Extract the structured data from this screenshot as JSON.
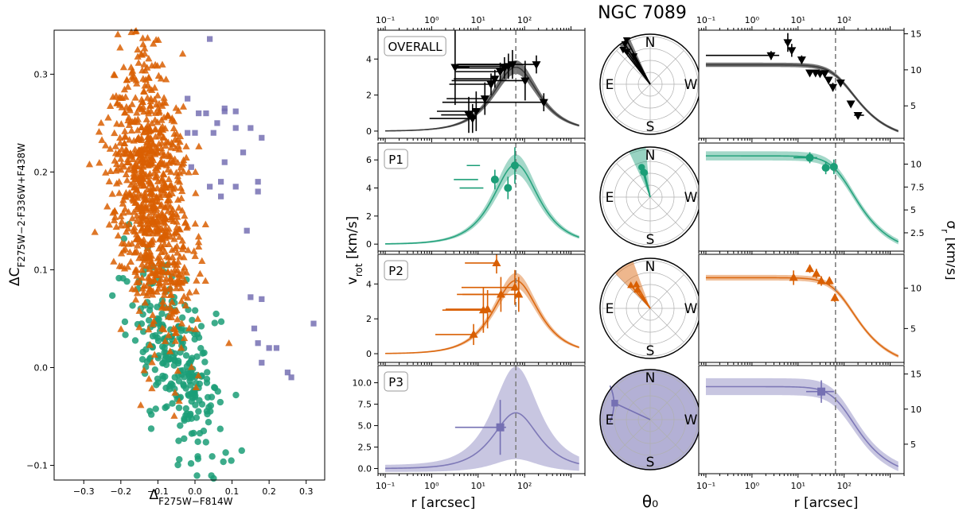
{
  "figure_title": "NGC 7089",
  "colors": {
    "overall": "#000000",
    "overall_band": "#555555",
    "P1": "#1b9e77",
    "P2": "#d95f02",
    "P3": "#7570b3"
  },
  "chart_data": [
    {
      "type": "scatter",
      "id": "chromosome-map",
      "xlabel": "Δ_F275W−F814W",
      "ylabel": "ΔC_F275W−2·F336W+F438W",
      "xlim": [
        -0.38,
        0.35
      ],
      "ylim": [
        -0.115,
        0.345
      ],
      "xticks": [
        -0.3,
        -0.2,
        -0.1,
        0.0,
        0.1,
        0.2,
        0.3
      ],
      "xtick_labels": [
        "−0.3",
        "−0.2",
        "−0.1",
        "0.0",
        "0.1",
        "0.2",
        "0.3"
      ],
      "yticks": [
        -0.1,
        0.0,
        0.1,
        0.2,
        0.3
      ],
      "ytick_labels": [
        "−0.1",
        "0.0",
        "0.1",
        "0.2",
        "0.3"
      ],
      "series": [
        {
          "name": "P1",
          "marker": "circle",
          "color": "#1b9e77",
          "count": 260,
          "center": [
            -0.05,
            0.01
          ],
          "spread": [
            0.07,
            0.04
          ],
          "slope": -0.45
        },
        {
          "name": "P2",
          "marker": "triangle",
          "color": "#d95f02",
          "count": 900,
          "center": [
            -0.12,
            0.18
          ],
          "spread": [
            0.06,
            0.07
          ],
          "slope": -0.55
        },
        {
          "name": "P3",
          "marker": "square",
          "color": "#7570b3",
          "points": [
            [
              0.04,
              0.336
            ],
            [
              -0.02,
              0.275
            ],
            [
              0.01,
              0.26
            ],
            [
              0.03,
              0.26
            ],
            [
              0.08,
              0.265
            ],
            [
              0.08,
              0.262
            ],
            [
              0.11,
              0.262
            ],
            [
              0.11,
              0.245
            ],
            [
              0.15,
              0.245
            ],
            [
              0.18,
              0.235
            ],
            [
              -0.01,
              0.205
            ],
            [
              0.05,
              0.24
            ],
            [
              0.06,
              0.25
            ],
            [
              0.0,
              0.24
            ],
            [
              -0.02,
              0.24
            ],
            [
              0.08,
              0.21
            ],
            [
              0.13,
              0.22
            ],
            [
              0.17,
              0.19
            ],
            [
              0.17,
              0.18
            ],
            [
              0.11,
              0.185
            ],
            [
              0.14,
              0.14
            ],
            [
              0.07,
              0.19
            ],
            [
              0.04,
              0.185
            ],
            [
              0.07,
              0.175
            ],
            [
              0.16,
              0.04
            ],
            [
              0.18,
              0.07
            ],
            [
              0.18,
              0.005
            ],
            [
              0.2,
              0.02
            ],
            [
              0.22,
              0.02
            ],
            [
              0.25,
              -0.005
            ],
            [
              0.26,
              -0.01
            ],
            [
              0.32,
              0.045
            ],
            [
              0.17,
              0.025
            ],
            [
              0.15,
              0.072
            ]
          ]
        }
      ]
    },
    {
      "type": "line",
      "id": "vrot-profiles",
      "xscale": "log",
      "xlabel": "r [arcsec]",
      "ylabel": "v_rot [km/s]",
      "xlim": [
        0.07,
        2000
      ],
      "top_axis_ticks": [
        "10⁻¹",
        "10⁰",
        "10¹",
        "10²"
      ],
      "bottom_axis_ticks": [
        "10⁻¹",
        "10⁰",
        "10¹",
        "10²"
      ],
      "vline_r": 65,
      "model": {
        "Vpeak": 3.9,
        "Rpeak": 65
      },
      "panels": [
        {
          "label": "OVERALL",
          "color": "#000000",
          "ylim": [
            -0.4,
            5.6
          ],
          "yticks": [
            0,
            2,
            4
          ],
          "vpeak": 3.55,
          "band": 0.35,
          "marker": "triangle-down",
          "points": [
            [
              3.2,
              3.55,
              3.1,
              6.5,
              2.1
            ],
            [
              6.3,
              0.9,
              1.6,
              8.2,
              1.0
            ],
            [
              7.6,
              0.7,
              0.9,
              8.8,
              0.8
            ],
            [
              9.1,
              1.1,
              1.3,
              10.6,
              1.1
            ],
            [
              14,
              1.8,
              2.1,
              16,
              0.9
            ],
            [
              19,
              2.6,
              2.4,
              21,
              0.6
            ],
            [
              23,
              2.9,
              3.0,
              25,
              0.5
            ],
            [
              30,
              3.3,
              3.3,
              33,
              0.5
            ],
            [
              37,
              3.5,
              3.5,
              40,
              0.6
            ],
            [
              45,
              3.6,
              3.6,
              49,
              0.7
            ],
            [
              55,
              3.7,
              3.7,
              60,
              0.8
            ],
            [
              103,
              2.8,
              2.7,
              110,
              1.1
            ],
            [
              180,
              3.7,
              3.5,
              195,
              0.5
            ],
            [
              260,
              1.6,
              1.7,
              285,
              0.5
            ]
          ]
        },
        {
          "label": "P1",
          "color": "#1b9e77",
          "ylim": [
            -0.5,
            7.2
          ],
          "yticks": [
            0,
            2,
            4,
            6
          ],
          "vpeak": 5.7,
          "band": 0.65,
          "marker": "circle",
          "points": [
            [
              23,
              4.6,
              3.0,
              10,
              0.7
            ],
            [
              44,
              4.0,
              4.0,
              13,
              0.8
            ],
            [
              62,
              5.6,
              5.7,
              11,
              1.3
            ]
          ]
        },
        {
          "label": "P2",
          "color": "#d95f02",
          "ylim": [
            -0.5,
            5.7
          ],
          "yticks": [
            0,
            2,
            4
          ],
          "vpeak": 4.2,
          "band": 0.4,
          "marker": "triangle",
          "points": [
            [
              8,
              1.1,
              1.2,
              9,
              0.6
            ],
            [
              13,
              2.5,
              1.7,
              14,
              1.3
            ],
            [
              16,
              2.55,
              2.0,
              17,
              1.1
            ],
            [
              25,
              5.2,
              5.2,
              27,
              0.6
            ],
            [
              31,
              3.4,
              3.5,
              35,
              1.0
            ],
            [
              62,
              3.8,
              4.4,
              70,
              1.0
            ],
            [
              75,
              3.4,
              4.6,
              85,
              1.0
            ]
          ]
        },
        {
          "label": "P3",
          "color": "#7570b3",
          "ylim": [
            -0.6,
            12.0
          ],
          "yticks": [
            0.0,
            2.5,
            5.0,
            7.5,
            10.0
          ],
          "vpeak": 6.5,
          "band": 5.0,
          "marker": "square",
          "points": [
            [
              30,
              4.8,
              3.2,
              40,
              3.2
            ]
          ]
        }
      ]
    },
    {
      "type": "polar",
      "id": "theta0-polar",
      "xlabel": "θ₀",
      "compass": [
        "N",
        "E",
        "S",
        "W"
      ],
      "panels": [
        {
          "color": "#000000",
          "filled": false,
          "angles_deg": [
            30,
            35,
            38,
            32,
            28
          ],
          "radii": [
            0.65,
            0.8,
            0.88,
            0.95,
            1.0
          ],
          "wedge": [
            24,
            38
          ]
        },
        {
          "color": "#1b9e77",
          "filled": false,
          "angles_deg": [
            15,
            16,
            13
          ],
          "radii": [
            0.52,
            0.62,
            0.5
          ],
          "wedge": [
            5,
            25
          ]
        },
        {
          "color": "#d95f02",
          "filled": false,
          "angles_deg": [
            35,
            30,
            40
          ],
          "radii": [
            0.45,
            0.55,
            0.6
          ],
          "wedge": [
            20,
            45
          ]
        },
        {
          "color": "#7570b3",
          "filled": true,
          "angles_deg": [
            65
          ],
          "radii": [
            0.78
          ],
          "wedge": [
            0,
            360
          ]
        }
      ]
    },
    {
      "type": "line",
      "id": "sigma-profiles",
      "xscale": "log",
      "xlabel": "r [arcsec]",
      "ylabel": "σ_r [km/s]",
      "top_axis_ticks": [
        "10⁻¹",
        "10⁰",
        "10¹",
        "10²"
      ],
      "bottom_axis_ticks": [
        "10⁻¹",
        "10⁰",
        "10¹",
        "10²"
      ],
      "panels": [
        {
          "color": "#000000",
          "ylim": [
            0.5,
            15.5
          ],
          "yticks": [
            5,
            10,
            15
          ],
          "sigma0": 10.7,
          "band": 0.3,
          "marker": "triangle-down",
          "points": [
            [
              2.6,
              12.0,
              0.1,
              3.9,
              0.6
            ],
            [
              6,
              13.8,
              5.2,
              6.6,
              1.3
            ],
            [
              7.3,
              12.7,
              6.8,
              7.8,
              0.9
            ],
            [
              12,
              11.4,
              10.4,
              13.2,
              0.6
            ],
            [
              18,
              9.6,
              16,
              20,
              0.4
            ],
            [
              24,
              9.6,
              22,
              26,
              0.4
            ],
            [
              30,
              9.5,
              28,
              33,
              0.4
            ],
            [
              38,
              9.5,
              35,
              42,
              0.4
            ],
            [
              46,
              8.6,
              42,
              51,
              0.4
            ],
            [
              57,
              7.6,
              52,
              62,
              0.6
            ],
            [
              84,
              8.2,
              76,
              92,
              0.4
            ],
            [
              140,
              5.3,
              126,
              155,
              0.4
            ],
            [
              200,
              3.7,
              165,
              270,
              0.4
            ]
          ]
        },
        {
          "color": "#1b9e77",
          "ylim": [
            0.5,
            12.3
          ],
          "yticks": [
            2.5,
            5.0,
            7.5,
            10.0
          ],
          "sigma0": 10.9,
          "band": 0.5,
          "marker": "circle",
          "points": [
            [
              18,
              10.7,
              8,
              26,
              0.6
            ],
            [
              40,
              9.6,
              33,
              49,
              0.7
            ],
            [
              60,
              9.7,
              52,
              70,
              0.8
            ]
          ]
        },
        {
          "color": "#d95f02",
          "ylim": [
            0.8,
            14.2
          ],
          "yticks": [
            5,
            10
          ],
          "sigma0": 11.3,
          "band": 0.35,
          "marker": "triangle",
          "points": [
            [
              8,
              11.3,
              7,
              9,
              0.9
            ],
            [
              18,
              12.4,
              16,
              20,
              0.5
            ],
            [
              25,
              11.8,
              22,
              28,
              0.6
            ],
            [
              32,
              10.9,
              29,
              35,
              0.6
            ],
            [
              48,
              10.9,
              44,
              52,
              0.5
            ],
            [
              63,
              8.8,
              58,
              68,
              0.5
            ]
          ]
        },
        {
          "color": "#7570b3",
          "ylim": [
            0.8,
            16.2
          ],
          "yticks": [
            5,
            10,
            15
          ],
          "sigma0": 13.2,
          "band": 1.2,
          "marker": "square",
          "points": [
            [
              32,
              12.5,
              15,
              60,
              1.6
            ]
          ]
        }
      ]
    }
  ]
}
